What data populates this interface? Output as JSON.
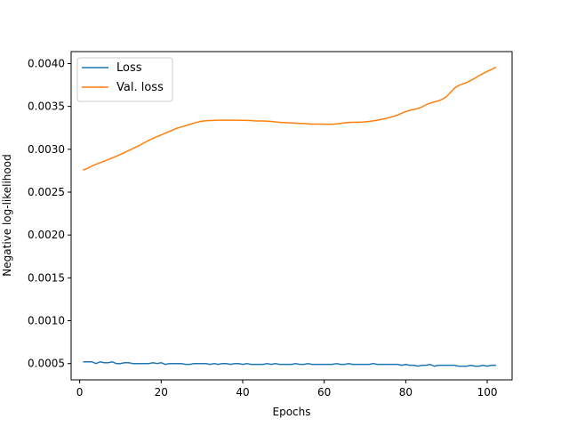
{
  "chart_data": {
    "type": "line",
    "title": "",
    "xlabel": "Epochs",
    "ylabel": "Negative log-likelihood",
    "xlim": [
      -2.1,
      106.1
    ],
    "ylim": [
      0.00031,
      0.00414
    ],
    "x_ticks": [
      0,
      20,
      40,
      60,
      80,
      100
    ],
    "x_tick_labels": [
      "0",
      "20",
      "40",
      "60",
      "80",
      "100"
    ],
    "y_ticks": [
      0.0005,
      0.001,
      0.0015,
      0.002,
      0.0025,
      0.003,
      0.0035,
      0.004
    ],
    "y_tick_labels": [
      "0.0005",
      "0.0010",
      "0.0015",
      "0.0020",
      "0.0025",
      "0.0030",
      "0.0035",
      "0.0040"
    ],
    "grid": false,
    "legend_position": "top-left",
    "series": [
      {
        "name": "Loss",
        "color": "#1f77b4",
        "x": [
          1,
          2,
          3,
          4,
          5,
          6,
          7,
          8,
          9,
          10,
          11,
          12,
          13,
          14,
          15,
          16,
          17,
          18,
          19,
          20,
          21,
          22,
          23,
          24,
          25,
          26,
          27,
          28,
          29,
          30,
          31,
          32,
          33,
          34,
          35,
          36,
          37,
          38,
          39,
          40,
          41,
          42,
          43,
          44,
          45,
          46,
          47,
          48,
          49,
          50,
          51,
          52,
          53,
          54,
          55,
          56,
          57,
          58,
          59,
          60,
          61,
          62,
          63,
          64,
          65,
          66,
          67,
          68,
          69,
          70,
          71,
          72,
          73,
          74,
          75,
          76,
          77,
          78,
          79,
          80,
          81,
          82,
          83,
          84,
          85,
          86,
          87,
          88,
          89,
          90,
          91,
          92,
          93,
          94,
          95,
          96,
          97,
          98,
          99,
          100,
          101,
          102
        ],
        "y": [
          0.00052,
          0.00052,
          0.00052,
          0.0005,
          0.00052,
          0.00051,
          0.00051,
          0.00052,
          0.0005,
          0.0005,
          0.00051,
          0.00051,
          0.0005,
          0.0005,
          0.0005,
          0.0005,
          0.0005,
          0.00051,
          0.0005,
          0.00051,
          0.00049,
          0.0005,
          0.0005,
          0.0005,
          0.0005,
          0.00049,
          0.00049,
          0.0005,
          0.0005,
          0.0005,
          0.0005,
          0.00049,
          0.0005,
          0.00049,
          0.0005,
          0.0005,
          0.00049,
          0.0005,
          0.0005,
          0.00049,
          0.0005,
          0.00049,
          0.00049,
          0.00049,
          0.00049,
          0.0005,
          0.00049,
          0.0005,
          0.00049,
          0.00049,
          0.00049,
          0.00049,
          0.0005,
          0.00049,
          0.00049,
          0.0005,
          0.00049,
          0.00049,
          0.00049,
          0.00049,
          0.00049,
          0.00049,
          0.0005,
          0.00049,
          0.00049,
          0.0005,
          0.00049,
          0.00049,
          0.00049,
          0.00049,
          0.00049,
          0.0005,
          0.00049,
          0.00049,
          0.00049,
          0.00049,
          0.00049,
          0.00049,
          0.00048,
          0.00049,
          0.00048,
          0.00048,
          0.00047,
          0.00048,
          0.00048,
          0.00049,
          0.00047,
          0.00048,
          0.00048,
          0.00048,
          0.00048,
          0.00048,
          0.00047,
          0.00047,
          0.00047,
          0.00048,
          0.00047,
          0.00047,
          0.00048,
          0.00047,
          0.00048,
          0.00048
        ]
      },
      {
        "name": "Val. loss",
        "color": "#ff7f0e",
        "x": [
          1,
          2,
          3,
          4,
          5,
          6,
          7,
          8,
          9,
          10,
          11,
          12,
          13,
          14,
          15,
          16,
          17,
          18,
          19,
          20,
          21,
          22,
          23,
          24,
          25,
          26,
          27,
          28,
          29,
          30,
          31,
          32,
          33,
          34,
          35,
          36,
          37,
          38,
          39,
          40,
          41,
          42,
          43,
          44,
          45,
          46,
          47,
          48,
          49,
          50,
          51,
          52,
          53,
          54,
          55,
          56,
          57,
          58,
          59,
          60,
          61,
          62,
          63,
          64,
          65,
          66,
          67,
          68,
          69,
          70,
          71,
          72,
          73,
          74,
          75,
          76,
          77,
          78,
          79,
          80,
          81,
          82,
          83,
          84,
          85,
          86,
          87,
          88,
          89,
          90,
          91,
          92,
          93,
          94,
          95,
          96,
          97,
          98,
          99,
          100,
          101,
          102
        ],
        "y": [
          0.00276,
          0.00278,
          0.002805,
          0.002825,
          0.002843,
          0.00286,
          0.00288,
          0.0029,
          0.00292,
          0.00294,
          0.002962,
          0.002985,
          0.003008,
          0.00303,
          0.003055,
          0.00308,
          0.003105,
          0.003128,
          0.003148,
          0.003168,
          0.003188,
          0.003208,
          0.003228,
          0.003248,
          0.003262,
          0.003275,
          0.00329,
          0.003305,
          0.003318,
          0.003328,
          0.003333,
          0.003335,
          0.003337,
          0.003339,
          0.00334,
          0.003339,
          0.003339,
          0.003339,
          0.003338,
          0.003338,
          0.003337,
          0.003336,
          0.003332,
          0.00333,
          0.00333,
          0.003328,
          0.003325,
          0.00332,
          0.003315,
          0.003312,
          0.00331,
          0.003308,
          0.003305,
          0.003302,
          0.0033,
          0.003297,
          0.003294,
          0.003294,
          0.003294,
          0.003293,
          0.003293,
          0.003293,
          0.003297,
          0.003302,
          0.00331,
          0.003313,
          0.003315,
          0.003316,
          0.003316,
          0.00332,
          0.003325,
          0.003332,
          0.00334,
          0.003349,
          0.003358,
          0.00337,
          0.003385,
          0.0034,
          0.00342,
          0.00344,
          0.003455,
          0.003465,
          0.003475,
          0.003495,
          0.00352,
          0.003538,
          0.003553,
          0.003565,
          0.003585,
          0.003615,
          0.003665,
          0.003715,
          0.003745,
          0.003762,
          0.00378,
          0.003805,
          0.00383,
          0.00386,
          0.003885,
          0.003908,
          0.00393,
          0.003955
        ]
      }
    ]
  }
}
